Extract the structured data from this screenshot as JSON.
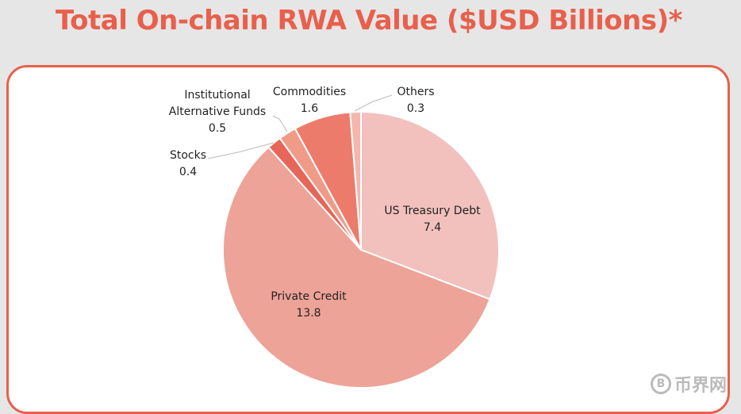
{
  "chart_data": {
    "type": "pie",
    "title": "Total On-chain RWA Value ($USD Billions)*",
    "start_angle": "12 o'clock, clockwise",
    "slices": [
      {
        "label": "US Treasury Debt",
        "value": 7.4,
        "value_text": "7.4",
        "color": "#f2c1bd"
      },
      {
        "label": "Private Credit",
        "value": 13.8,
        "value_text": "13.8",
        "color": "#eda397"
      },
      {
        "label": "Stocks",
        "value": 0.4,
        "value_text": "0.4",
        "color": "#e6675a"
      },
      {
        "label": "Institutional Alternative Funds",
        "value": 0.5,
        "value_text": "0.5",
        "color": "#ef9b88"
      },
      {
        "label": "Commodities",
        "value": 1.6,
        "value_text": "1.6",
        "color": "#ec7b6c"
      },
      {
        "label": "Others",
        "value": 0.3,
        "value_text": "0.3",
        "color": "#f3b7ad"
      }
    ]
  },
  "label_lines": {
    "iaf_line1": "Institutional",
    "iaf_line2": "Alternative Funds"
  },
  "watermark": {
    "text": "币界网",
    "coin": "B"
  },
  "colors": {
    "accent": "#e8604c"
  }
}
